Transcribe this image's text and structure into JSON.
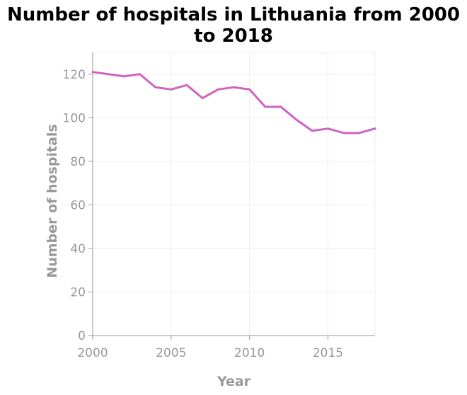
{
  "chart_data": {
    "type": "line",
    "title_lines": [
      "Number of hospitals in Lithuania from 2000",
      "to 2018"
    ],
    "xlabel": "Year",
    "ylabel": "Number of hospitals",
    "xlim": [
      2000,
      2018
    ],
    "ylim": [
      0,
      130
    ],
    "x_ticks": [
      2000,
      2005,
      2010,
      2015
    ],
    "y_ticks": [
      0,
      20,
      40,
      60,
      80,
      100,
      120
    ],
    "grid": true,
    "series": [
      {
        "color": "#d062c2",
        "x": [
          2000,
          2001,
          2002,
          2003,
          2004,
          2005,
          2006,
          2007,
          2008,
          2009,
          2010,
          2011,
          2012,
          2013,
          2014,
          2015,
          2016,
          2017,
          2018
        ],
        "values": [
          121,
          120,
          119,
          120,
          114,
          113,
          115,
          109,
          113,
          114,
          113,
          105,
          105,
          99,
          94,
          95,
          93,
          93,
          95
        ]
      }
    ]
  }
}
